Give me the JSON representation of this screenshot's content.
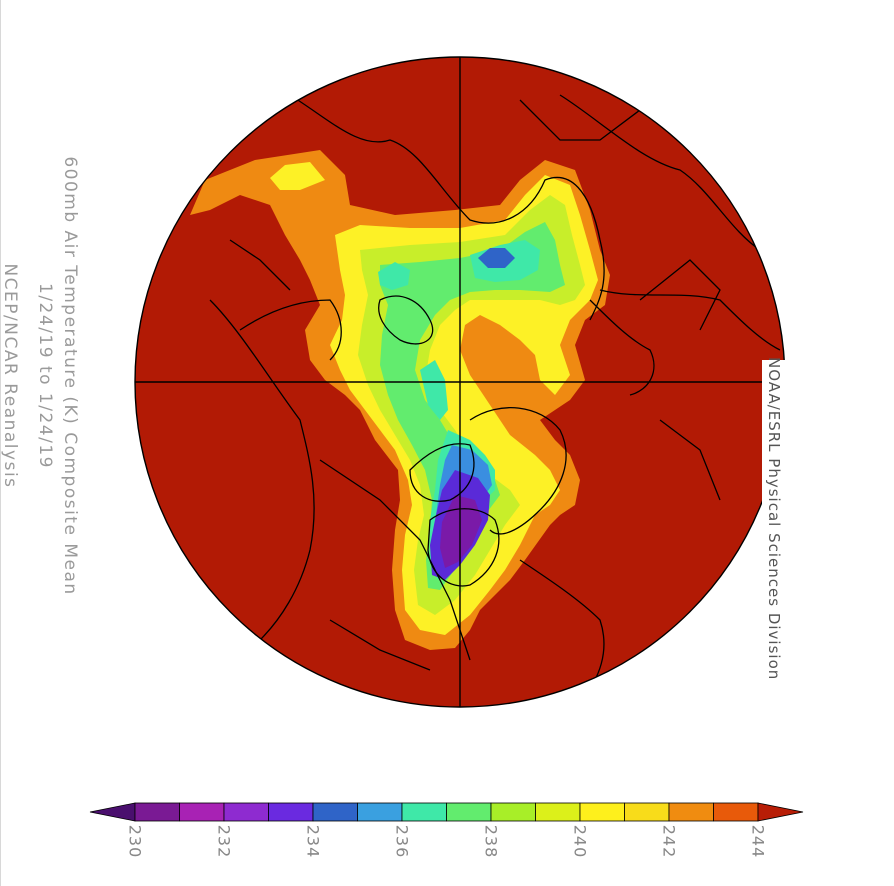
{
  "title_lines": [
    "600mb Air Temperature (K) Composite Mean",
    "1/24/19  to  1/24/19",
    "NCEP/NCAR Reanalysis"
  ],
  "credit": "NOAA/ESRL Physical Sciences Division",
  "colorbar": {
    "labels": [
      "230",
      "232",
      "234",
      "236",
      "238",
      "240",
      "242",
      "244"
    ],
    "colors": [
      "#7a1a94",
      "#a822b4",
      "#8e2bd0",
      "#6a2ae0",
      "#2f64c8",
      "#3aa0e0",
      "#3fe8a8",
      "#62ec6e",
      "#a8ee28",
      "#dcf01a",
      "#fef01c",
      "#f8dc1a",
      "#f08c10",
      "#e85a0a"
    ],
    "under_color": "#4a0f6e",
    "over_color": "#b81d06"
  },
  "field_colors": {
    "background": "#b21a05",
    "orange": "#ef8a12",
    "yellow": "#fdf126",
    "yellow_green": "#c8ee2a",
    "green": "#62ec6e",
    "cyan": "#3fe8a8",
    "blue": "#3a8ee0",
    "indigo": "#5a2ad8",
    "purple": "#7a1aa8"
  },
  "map": {
    "projection": "north-polar-stereographic",
    "center_value_unit": "K"
  }
}
